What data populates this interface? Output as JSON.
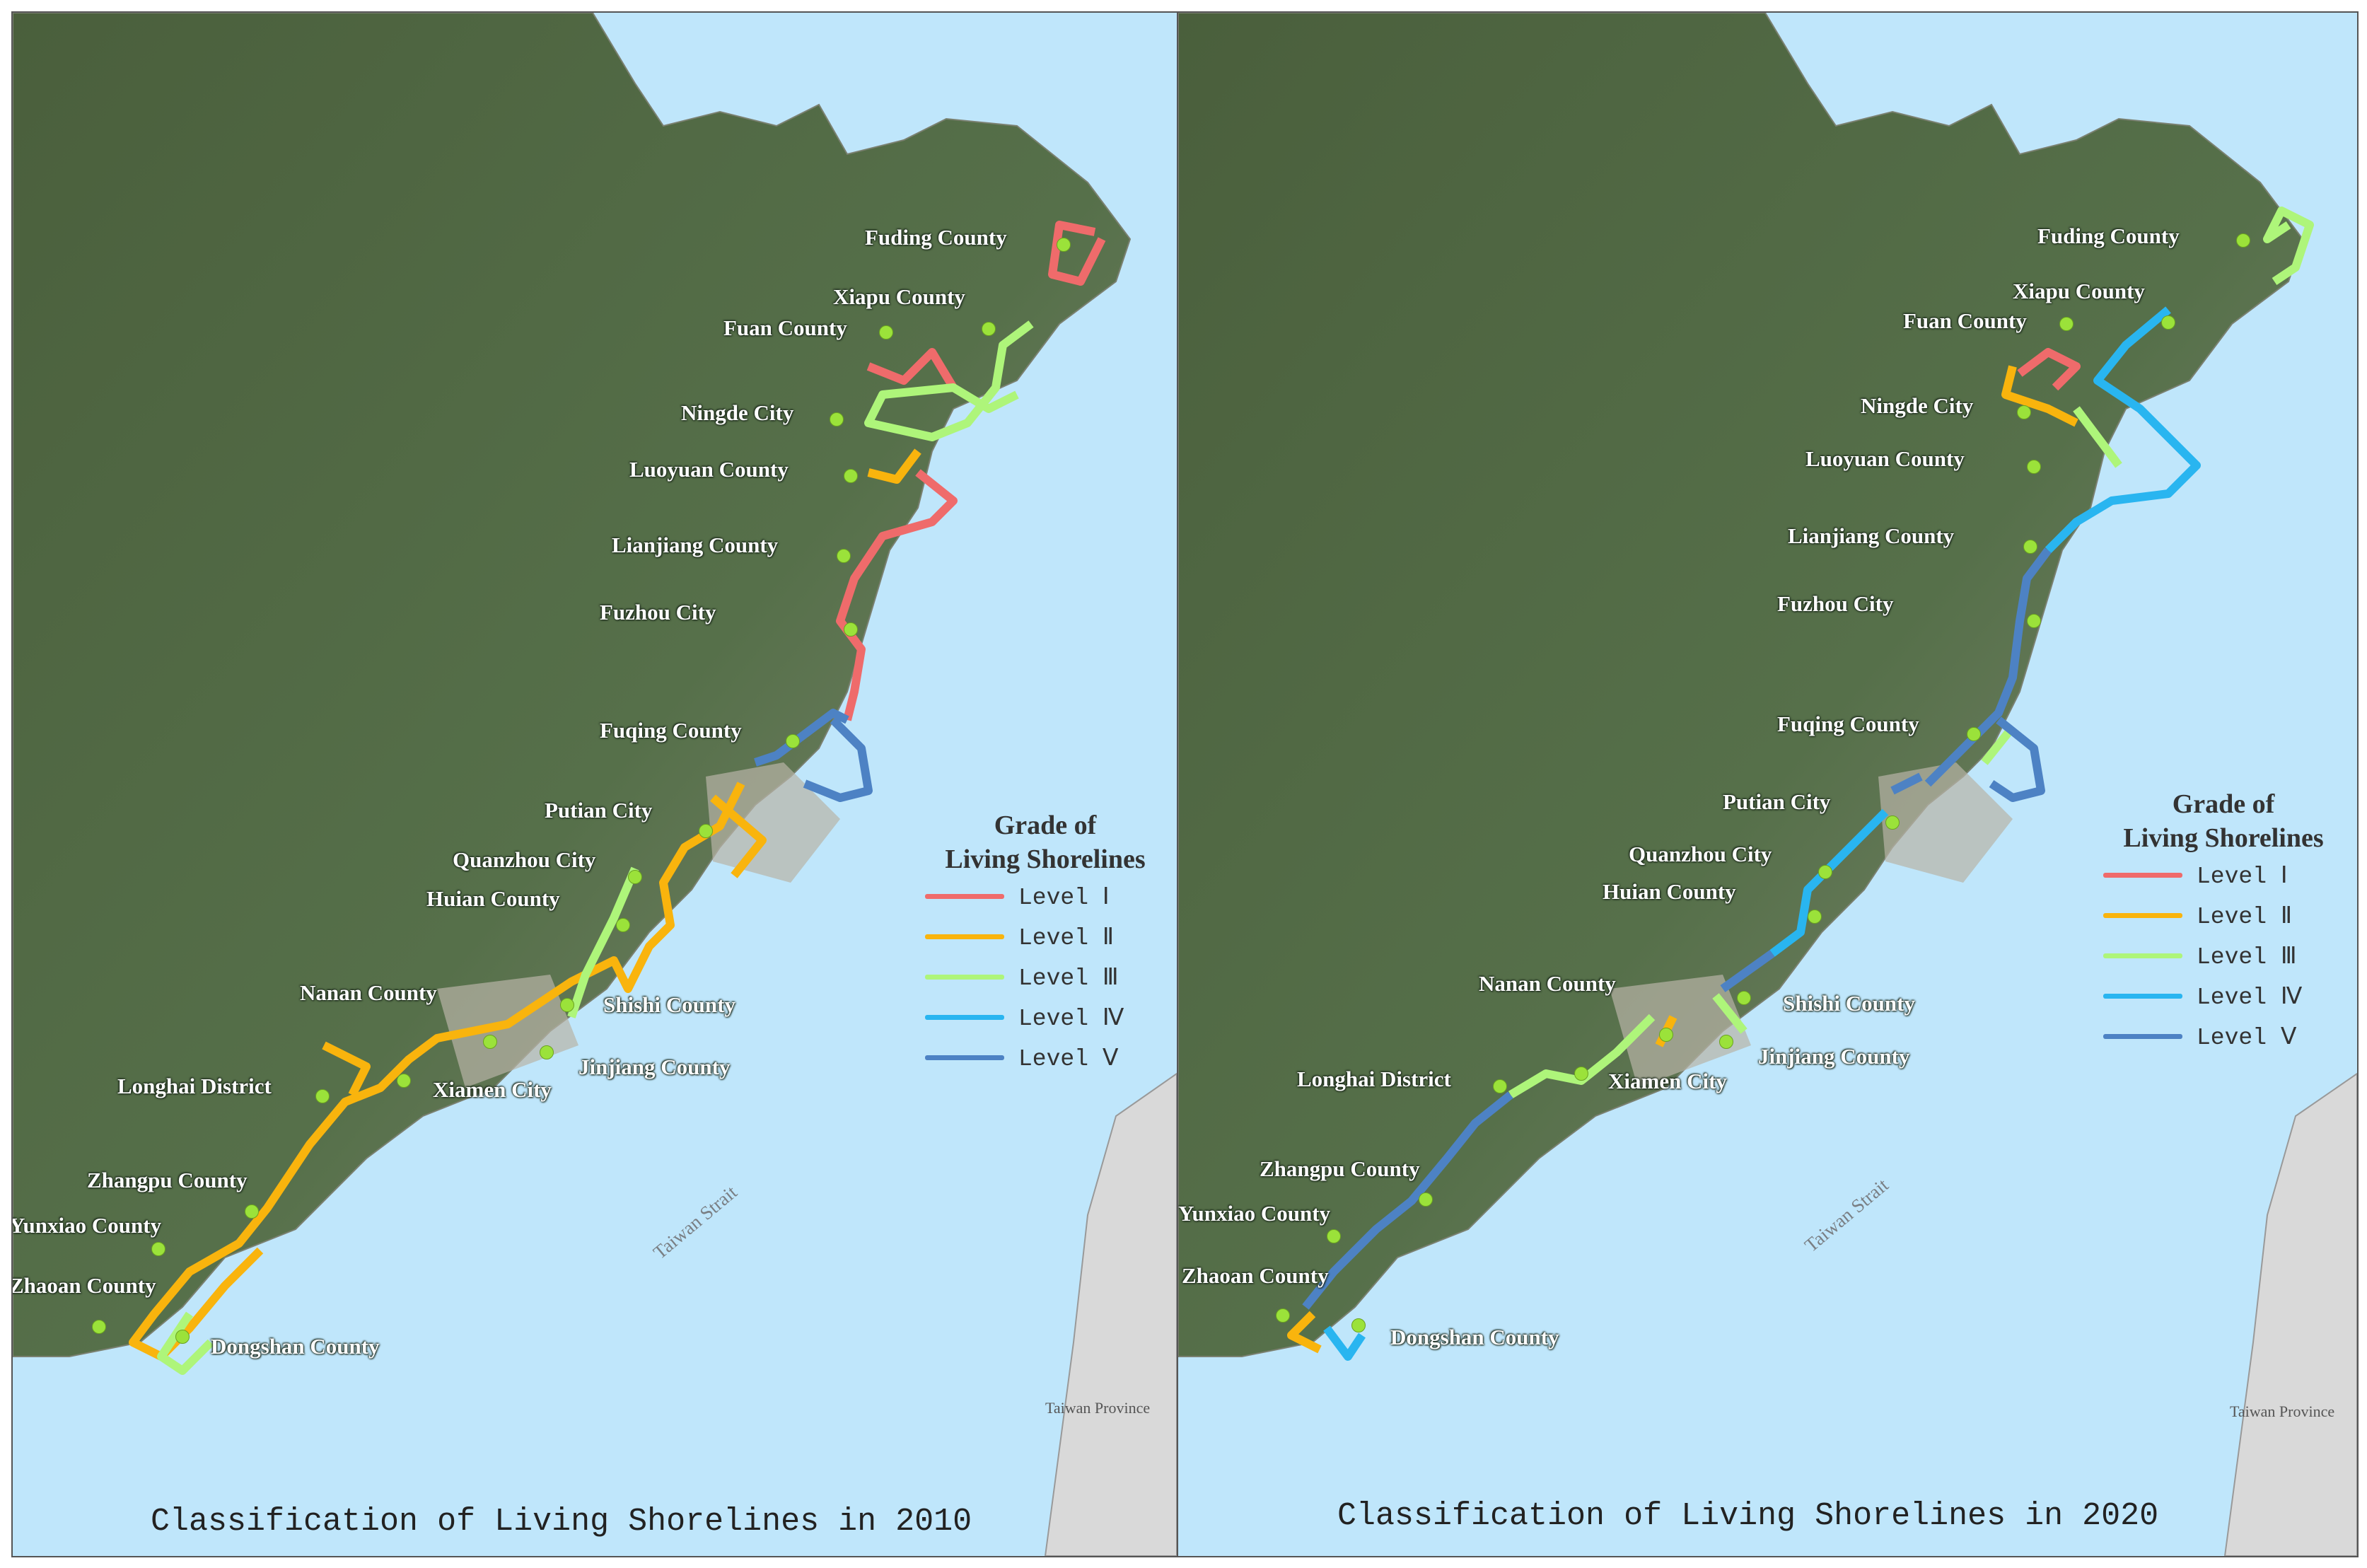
{
  "colors": {
    "sea": "#bfe6fb",
    "land_gray": "#d9d9d9",
    "site_dot": "#9be23a",
    "level_1": "#ef6b6b",
    "level_2": "#f9b40d",
    "level_3": "#aef57a",
    "level_4": "#29b5f0",
    "level_5": "#4d82c4"
  },
  "legend": {
    "title_line1": "Grade of",
    "title_line2": "Living Shorelines",
    "items": [
      {
        "label": "Level  Ⅰ",
        "color": "#ef6b6b"
      },
      {
        "label": "Level  Ⅱ",
        "color": "#f9b40d"
      },
      {
        "label": "Level  Ⅲ",
        "color": "#aef57a"
      },
      {
        "label": "Level  Ⅳ",
        "color": "#29b5f0"
      },
      {
        "label": "Level  Ⅴ",
        "color": "#4d82c4"
      }
    ]
  },
  "maps": [
    {
      "title": "Classification of Living Shorelines in 2010",
      "strait_label": "Taiwan Strait",
      "province_label": "Taiwan Province",
      "places": [
        {
          "name": "Fuding County"
        },
        {
          "name": "Xiapu County"
        },
        {
          "name": "Fuan County"
        },
        {
          "name": "Ningde City"
        },
        {
          "name": "Luoyuan County"
        },
        {
          "name": "Lianjiang County"
        },
        {
          "name": "Fuzhou City"
        },
        {
          "name": "Fuqing County"
        },
        {
          "name": "Putian City"
        },
        {
          "name": "Quanzhou City"
        },
        {
          "name": "Huian County"
        },
        {
          "name": "Shishi  County"
        },
        {
          "name": "Nanan County"
        },
        {
          "name": "Jinjiang County"
        },
        {
          "name": "Xiamen City"
        },
        {
          "name": "Longhai District"
        },
        {
          "name": "Zhangpu County"
        },
        {
          "name": "Yunxiao County"
        },
        {
          "name": "Zhaoan County"
        },
        {
          "name": "Dongshan County"
        }
      ]
    },
    {
      "title": "Classification of Living Shorelines in 2020",
      "strait_label": "Taiwan Strait",
      "province_label": "Taiwan Province",
      "places": [
        {
          "name": "Fuding County"
        },
        {
          "name": "Xiapu County"
        },
        {
          "name": "Fuan County"
        },
        {
          "name": "Ningde City"
        },
        {
          "name": "Luoyuan County"
        },
        {
          "name": "Lianjiang County"
        },
        {
          "name": "Fuzhou City"
        },
        {
          "name": "Fuqing County"
        },
        {
          "name": "Putian City"
        },
        {
          "name": "Quanzhou City"
        },
        {
          "name": "Huian County"
        },
        {
          "name": "Shishi  County"
        },
        {
          "name": "Nanan County"
        },
        {
          "name": "Jinjiang County"
        },
        {
          "name": "Xiamen City"
        },
        {
          "name": "Longhai District"
        },
        {
          "name": "Zhangpu County"
        },
        {
          "name": "Yunxiao County"
        },
        {
          "name": "Zhaoan County"
        },
        {
          "name": "Dongshan County"
        }
      ]
    }
  ]
}
